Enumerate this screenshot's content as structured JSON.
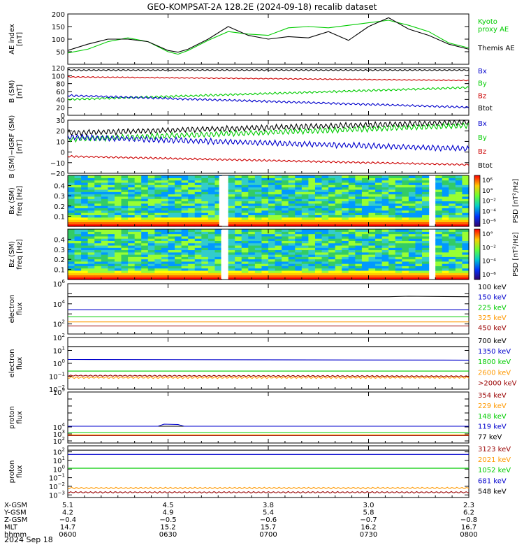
{
  "title": "GEO-KOMPSAT-2A 128.2E (2024-09-18) recalib dataset",
  "date_label": "2024 Sep 18",
  "colors": {
    "black": "#000000",
    "green": "#00cc00",
    "red": "#cc0000",
    "blue": "#0000cc",
    "orange": "#ff9900",
    "darkred": "#990000",
    "lightgreen": "#00dd33",
    "darkblue": "#000099"
  },
  "x_axis": {
    "range_hours": [
      6.0,
      8.0
    ],
    "tick_hours": [
      6.0,
      6.5,
      7.0,
      7.5,
      8.0
    ],
    "rows": [
      {
        "label": "X-GSM",
        "values": [
          "5.1",
          "4.5",
          "3.8",
          "3.0",
          "2.3"
        ]
      },
      {
        "label": "Y-GSM",
        "values": [
          "4.2",
          "4.9",
          "5.4",
          "5.8",
          "6.2"
        ]
      },
      {
        "label": "Z-GSM",
        "values": [
          "−0.4",
          "−0.5",
          "−0.6",
          "−0.7",
          "−0.8"
        ]
      },
      {
        "label": "MLT",
        "values": [
          "14.7",
          "15.2",
          "15.7",
          "16.2",
          "16.7"
        ]
      },
      {
        "label": "hhmm",
        "values": [
          "0600",
          "0630",
          "0700",
          "0730",
          "0800"
        ]
      }
    ]
  },
  "chart_data": [
    {
      "type": "line",
      "id": "ae",
      "ylabel": [
        "AE index",
        "[nT]"
      ],
      "ylim": [
        0,
        200
      ],
      "yticks": [
        50,
        100,
        150,
        200
      ],
      "ytick_labels": [
        "50",
        "100",
        "150",
        "200"
      ],
      "legend": [
        {
          "text": "Kyoto",
          "color": "green"
        },
        {
          "text": "proxy AE",
          "color": "green"
        },
        {
          "text": "Themis AE",
          "color": "black"
        }
      ],
      "series": [
        {
          "name": "Kyoto proxy AE",
          "color": "green",
          "x": [
            6.0,
            6.1,
            6.2,
            6.3,
            6.4,
            6.5,
            6.55,
            6.6,
            6.7,
            6.8,
            6.9,
            7.0,
            7.1,
            7.2,
            7.3,
            7.4,
            7.5,
            7.6,
            7.7,
            7.8,
            7.9,
            8.0
          ],
          "y": [
            45,
            60,
            90,
            105,
            90,
            50,
            40,
            55,
            95,
            130,
            120,
            115,
            145,
            150,
            145,
            155,
            165,
            175,
            155,
            130,
            85,
            65
          ]
        },
        {
          "name": "Themis AE",
          "color": "black",
          "x": [
            6.0,
            6.1,
            6.2,
            6.3,
            6.4,
            6.5,
            6.55,
            6.6,
            6.7,
            6.8,
            6.9,
            7.0,
            7.1,
            7.2,
            7.3,
            7.4,
            7.5,
            7.6,
            7.7,
            7.8,
            7.9,
            8.0
          ],
          "y": [
            55,
            80,
            100,
            100,
            90,
            55,
            48,
            60,
            100,
            150,
            115,
            100,
            110,
            105,
            130,
            95,
            150,
            185,
            140,
            115,
            80,
            60
          ]
        }
      ]
    },
    {
      "type": "line",
      "id": "bsm",
      "ylabel": [
        "B (SM)",
        "[nT]"
      ],
      "ylim": [
        0,
        120
      ],
      "yticks": [
        0,
        20,
        40,
        60,
        80,
        100,
        120
      ],
      "ytick_labels": [
        "0",
        "20",
        "40",
        "60",
        "80",
        "100",
        "120"
      ],
      "legend": [
        {
          "text": "Bx",
          "color": "blue"
        },
        {
          "text": "By",
          "color": "green"
        },
        {
          "text": "Bz",
          "color": "red"
        },
        {
          "text": "Btot",
          "color": "black"
        }
      ],
      "series": [
        {
          "name": "Btot",
          "color": "black",
          "x": [
            6.0,
            8.0
          ],
          "y": [
            114,
            114
          ],
          "ripple": 2
        },
        {
          "name": "Bz",
          "color": "red",
          "x": [
            6.0,
            8.0
          ],
          "y": [
            97,
            88
          ],
          "ripple": 1.5
        },
        {
          "name": "By",
          "color": "green",
          "x": [
            6.0,
            8.0
          ],
          "y": [
            40,
            70
          ],
          "ripple": 3
        },
        {
          "name": "Bx",
          "color": "blue",
          "x": [
            6.0,
            8.0
          ],
          "y": [
            50,
            20
          ],
          "ripple": 3
        }
      ]
    },
    {
      "type": "line",
      "id": "bsmigrf",
      "ylabel": [
        "B (SM)−IGRF (SM)",
        "[nT]"
      ],
      "ylim": [
        -20,
        30
      ],
      "yticks": [
        -20,
        -10,
        0,
        10,
        20,
        30
      ],
      "ytick_labels": [
        "−20",
        "−10",
        "0",
        "10",
        "20",
        "30"
      ],
      "legend": [
        {
          "text": "Bx",
          "color": "blue"
        },
        {
          "text": "By",
          "color": "green"
        },
        {
          "text": "Bz",
          "color": "red"
        },
        {
          "text": "Btot",
          "color": "black"
        }
      ],
      "series": [
        {
          "name": "Btot",
          "color": "black",
          "x": [
            6.0,
            8.0
          ],
          "y": [
            18,
            28
          ],
          "ripple": 3
        },
        {
          "name": "By",
          "color": "green",
          "x": [
            6.0,
            8.0
          ],
          "y": [
            12,
            25
          ],
          "ripple": 3
        },
        {
          "name": "Bx",
          "color": "blue",
          "x": [
            6.0,
            8.0
          ],
          "y": [
            14,
            3
          ],
          "ripple": 3
        },
        {
          "name": "Bz",
          "color": "red",
          "x": [
            6.0,
            8.0
          ],
          "y": [
            -4,
            -12
          ],
          "ripple": 1
        }
      ]
    },
    {
      "type": "heatmap",
      "id": "bx_spec",
      "ylabel": [
        "Bx (SM)",
        "freq [Hz]"
      ],
      "ylim": [
        0.0,
        0.5
      ],
      "yticks": [
        0.1,
        0.2,
        0.3,
        0.4
      ],
      "ytick_labels": [
        "0.1",
        "0.2",
        "0.3",
        "0.4"
      ],
      "colorbar": {
        "label": "PSD [nT²/Hz]",
        "tick_labels": [
          "10⁶",
          "10°",
          "10⁻²",
          "10⁻⁴",
          "10⁻⁶"
        ]
      },
      "gaps_hours": [
        [
          6.755,
          6.785
        ],
        [
          7.805,
          7.825
        ]
      ]
    },
    {
      "type": "heatmap",
      "id": "bz_spec",
      "ylabel": [
        "Bz (SM)",
        "freq [Hz]"
      ],
      "ylim": [
        0.0,
        0.5
      ],
      "yticks": [
        0.1,
        0.2,
        0.3,
        0.4
      ],
      "ytick_labels": [
        "0.1",
        "0.2",
        "0.3",
        "0.4"
      ],
      "colorbar": {
        "label": "PSD [nT²/Hz]",
        "tick_labels": [
          "10°",
          "10⁻²",
          "10⁻⁴",
          "10⁻⁶"
        ]
      },
      "gaps_hours": [
        [
          6.765,
          6.785
        ],
        [
          7.805,
          7.825
        ]
      ]
    },
    {
      "type": "line",
      "id": "elec_low",
      "log": true,
      "ylabel": [
        "electron",
        "flux"
      ],
      "ylim_exp": [
        1,
        6
      ],
      "yticks_exp": [
        2,
        4,
        6
      ],
      "legend": [
        {
          "text": "100 keV",
          "color": "black"
        },
        {
          "text": "150 keV",
          "color": "blue"
        },
        {
          "text": "225 keV",
          "color": "green"
        },
        {
          "text": "325 keV",
          "color": "orange"
        },
        {
          "text": "450 keV",
          "color": "darkred"
        }
      ],
      "series": [
        {
          "name": "100 keV",
          "color": "black",
          "x": [
            6.0,
            7.6,
            7.7,
            8.0
          ],
          "y": [
            4.7,
            4.7,
            4.75,
            4.7
          ]
        },
        {
          "name": "150 keV",
          "color": "blue",
          "x": [
            6.0,
            8.0
          ],
          "y": [
            3.4,
            3.4
          ]
        },
        {
          "name": "225 keV",
          "color": "green",
          "x": [
            6.0,
            8.0
          ],
          "y": [
            2.7,
            2.7
          ]
        },
        {
          "name": "325 keV",
          "color": "orange",
          "x": [
            6.0,
            8.0
          ],
          "y": [
            2.2,
            2.2
          ]
        },
        {
          "name": "450 keV",
          "color": "darkred",
          "x": [
            6.0,
            8.0
          ],
          "y": [
            1.8,
            1.8
          ]
        }
      ]
    },
    {
      "type": "line",
      "id": "elec_high",
      "log": true,
      "ylabel": [
        "electron",
        "flux"
      ],
      "ylim_exp": [
        -2,
        2
      ],
      "yticks_exp": [
        -2,
        -1,
        0,
        1,
        2
      ],
      "legend": [
        {
          "text": "700 keV",
          "color": "black"
        },
        {
          "text": "1350 keV",
          "color": "blue"
        },
        {
          "text": "1800 keV",
          "color": "green"
        },
        {
          "text": "2600 keV",
          "color": "orange"
        },
        {
          "text": ">2000 keV",
          "color": "darkred"
        }
      ],
      "series": [
        {
          "name": "700 keV",
          "color": "black",
          "x": [
            6.0,
            8.0
          ],
          "y": [
            1.3,
            1.3
          ]
        },
        {
          "name": "1350 keV",
          "color": "blue",
          "x": [
            6.0,
            8.0
          ],
          "y": [
            0.3,
            0.25
          ]
        },
        {
          "name": "1800 keV",
          "color": "green",
          "x": [
            6.0,
            8.0
          ],
          "y": [
            -0.6,
            -0.6
          ]
        },
        {
          "name": "2600 keV",
          "color": "orange",
          "x": [
            6.0,
            8.0
          ],
          "y": [
            -1.1,
            -1.1
          ],
          "ripple": 0.08
        },
        {
          "name": ">2000 keV",
          "color": "darkred",
          "x": [
            6.0,
            8.0
          ],
          "y": [
            -0.95,
            -1.0
          ],
          "ripple": 0.05
        }
      ]
    },
    {
      "type": "line",
      "id": "prot_low",
      "log": true,
      "ylabel": [
        "proton",
        "flux"
      ],
      "ylim_exp": [
        1.7,
        9
      ],
      "yticks_exp": [
        2,
        3,
        4,
        9
      ],
      "legend": [
        {
          "text": "354 keV",
          "color": "darkred"
        },
        {
          "text": "229 keV",
          "color": "orange"
        },
        {
          "text": "148 keV",
          "color": "green"
        },
        {
          "text": "119 keV",
          "color": "blue"
        },
        {
          "text": "77 keV",
          "color": "black"
        }
      ],
      "series": [
        {
          "name": "77 keV",
          "color": "black",
          "x": [
            6.0,
            8.0
          ],
          "y": [
            4.1,
            4.1
          ]
        },
        {
          "name": "119 keV",
          "color": "blue",
          "x": [
            6.0,
            6.45,
            6.48,
            6.55,
            6.58,
            8.0
          ],
          "y": [
            4.1,
            4.1,
            4.4,
            4.35,
            4.1,
            4.1
          ]
        },
        {
          "name": "148 keV",
          "color": "green",
          "x": [
            6.0,
            8.0
          ],
          "y": [
            3.2,
            3.2
          ]
        },
        {
          "name": "229 keV",
          "color": "orange",
          "x": [
            6.0,
            8.0
          ],
          "y": [
            2.9,
            2.9
          ]
        },
        {
          "name": "354 keV",
          "color": "darkred",
          "x": [
            6.0,
            8.0
          ],
          "y": [
            2.75,
            2.75
          ]
        }
      ]
    },
    {
      "type": "line",
      "id": "prot_high",
      "log": true,
      "ylabel": [
        "proton",
        "flux"
      ],
      "ylim_exp": [
        -3.3,
        2.7
      ],
      "yticks_exp": [
        -3,
        -2,
        -1,
        0,
        1,
        2
      ],
      "legend": [
        {
          "text": "3123 keV",
          "color": "darkred"
        },
        {
          "text": "2021 keV",
          "color": "orange"
        },
        {
          "text": "1052 keV",
          "color": "green"
        },
        {
          "text": "681 keV",
          "color": "blue"
        },
        {
          "text": "548 keV",
          "color": "black"
        }
      ],
      "series": [
        {
          "name": "548 keV",
          "color": "black",
          "x": [
            6.0,
            8.0
          ],
          "y": [
            2.2,
            2.2
          ]
        },
        {
          "name": "681 keV",
          "color": "blue",
          "x": [
            6.0,
            8.0
          ],
          "y": [
            1.7,
            1.7
          ]
        },
        {
          "name": "1052 keV",
          "color": "green",
          "x": [
            6.0,
            8.0
          ],
          "y": [
            0.1,
            0.1
          ]
        },
        {
          "name": "2021 keV",
          "color": "orange",
          "x": [
            6.0,
            8.0
          ],
          "y": [
            -2.2,
            -2.2
          ],
          "ripple": 0.1
        },
        {
          "name": "3123 keV",
          "color": "darkred",
          "x": [
            6.0,
            8.0
          ],
          "y": [
            -2.7,
            -2.7
          ],
          "ripple": 0.1
        }
      ]
    }
  ]
}
